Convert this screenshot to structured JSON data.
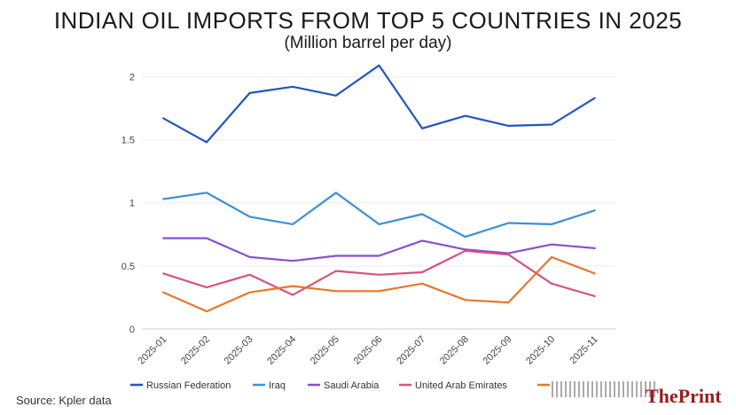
{
  "header": {
    "title": "INDIAN OIL IMPORTS FROM TOP 5 COUNTRIES IN 2025",
    "subtitle": "(Million barrel per day)"
  },
  "footer": {
    "source": "Source: Kpler data",
    "brand": "ThePrint"
  },
  "chart_data": {
    "type": "line",
    "title": "INDIAN OIL IMPORTS FROM TOP 5 COUNTRIES IN 2025",
    "subtitle": "(Million barrel per day)",
    "x": [
      "2025-01",
      "2025-02",
      "2025-03",
      "2025-04",
      "2025-05",
      "2025-06",
      "2025-07",
      "2025-08",
      "2025-09",
      "2025-10",
      "2025-11"
    ],
    "ylim": [
      0,
      2.2
    ],
    "yticks": [
      0,
      0.5,
      1,
      1.5,
      2
    ],
    "ytick_labels": [
      "0",
      "0.5",
      "1",
      "1.5",
      "2"
    ],
    "grid": true,
    "legend_position": "bottom",
    "series": [
      {
        "name": "Russian Federation",
        "color": "#2255c4",
        "values": [
          1.67,
          1.48,
          1.87,
          1.92,
          1.85,
          2.09,
          1.59,
          1.69,
          1.61,
          1.62,
          1.83
        ]
      },
      {
        "name": "Iraq",
        "color": "#3d8fd9",
        "values": [
          1.03,
          1.08,
          0.89,
          0.83,
          1.08,
          0.83,
          0.91,
          0.73,
          0.84,
          0.83,
          0.94
        ]
      },
      {
        "name": "Saudi Arabia",
        "color": "#8a4fd0",
        "values": [
          0.72,
          0.72,
          0.57,
          0.54,
          0.58,
          0.58,
          0.7,
          0.63,
          0.6,
          0.67,
          0.64
        ]
      },
      {
        "name": "United Arab Emirates",
        "color": "#d9527c",
        "values": [
          0.44,
          0.33,
          0.43,
          0.27,
          0.46,
          0.43,
          0.45,
          0.62,
          0.59,
          0.36,
          0.26
        ]
      },
      {
        "name": "",
        "color": "#e8772a",
        "values": [
          0.29,
          0.14,
          0.29,
          0.34,
          0.3,
          0.3,
          0.36,
          0.23,
          0.21,
          0.57,
          0.44
        ]
      }
    ]
  }
}
